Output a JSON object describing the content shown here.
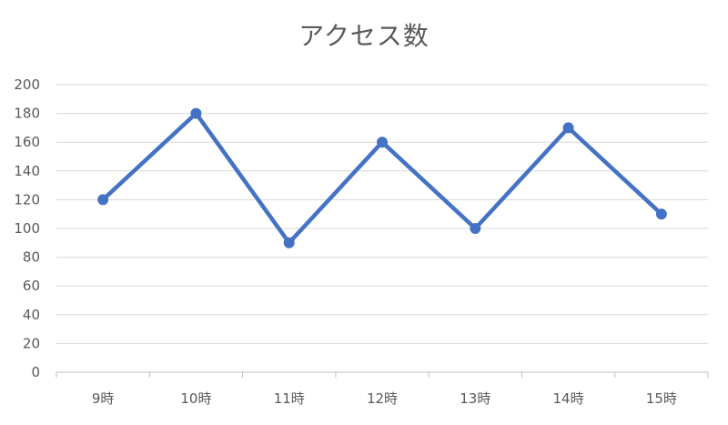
{
  "chart_data": {
    "type": "line",
    "title": "アクセス数",
    "categories": [
      "9時",
      "10時",
      "11時",
      "12時",
      "13時",
      "14時",
      "15時"
    ],
    "series": [
      {
        "values": [
          120,
          180,
          90,
          160,
          100,
          170,
          110
        ],
        "color": "#4472c4"
      }
    ],
    "ylim": [
      0,
      200
    ],
    "yticks": [
      0,
      20,
      40,
      60,
      80,
      100,
      120,
      140,
      160,
      180,
      200
    ],
    "grid": true,
    "legend": "none"
  }
}
